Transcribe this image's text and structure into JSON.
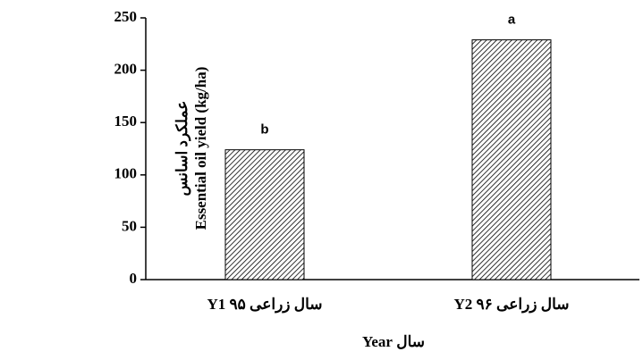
{
  "chart_data": {
    "type": "bar",
    "ylabel": [
      "عملکرد اسانس",
      "Essential oil yield  (kg/ha)"
    ],
    "xlabel": "سال  Year",
    "categories": [
      "سال زراعی ۹۵ Y1",
      "سال زراعی ۹۶ Y2"
    ],
    "values": [
      124,
      229
    ],
    "annotations": [
      "b",
      "a"
    ],
    "color": "#000000",
    "ylim": [
      0,
      250
    ],
    "yticks": [
      0,
      50,
      100,
      150,
      200,
      250
    ],
    "grid": false
  }
}
